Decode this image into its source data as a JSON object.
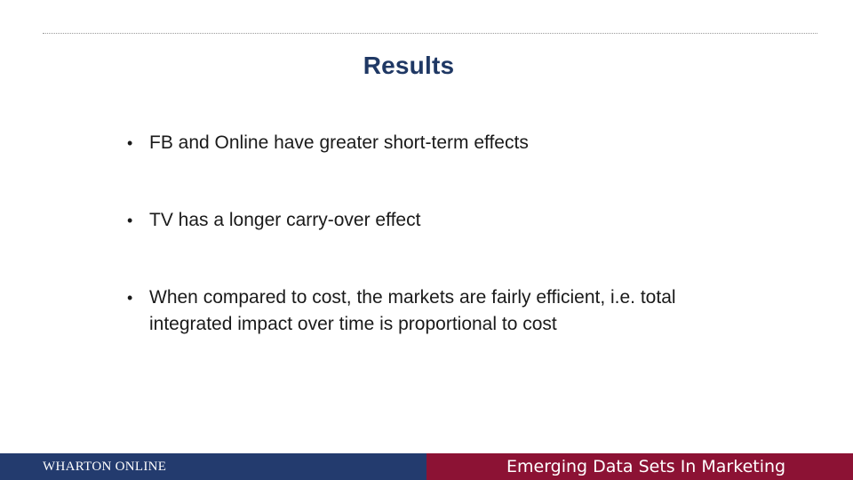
{
  "slide": {
    "title": "Results",
    "bullets": [
      {
        "marker": "•",
        "text": "FB and Online have greater short-term effects"
      },
      {
        "marker": "•",
        "text": "TV has a longer carry-over effect"
      },
      {
        "marker": "•",
        "text": "When compared to cost, the markets are fairly efficient, i.e. total integrated impact over time is proportional to cost"
      }
    ]
  },
  "footer": {
    "brand": "WHARTON ONLINE",
    "course": "Emerging Data Sets In Marketing",
    "colors": {
      "left_band": "#233b6e",
      "right_band": "#8c1234"
    }
  },
  "colors": {
    "title": "#1f3864",
    "body_text": "#1a1a1a"
  }
}
